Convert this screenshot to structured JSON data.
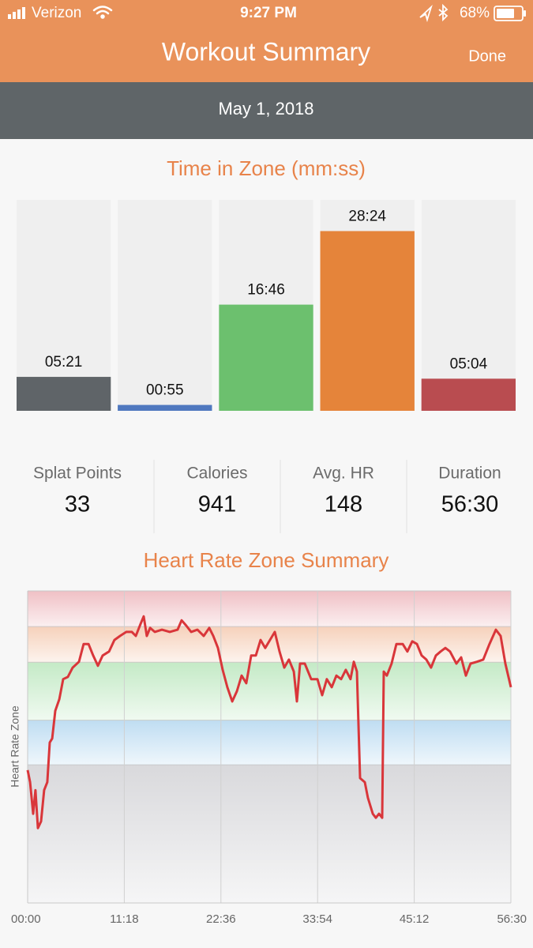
{
  "status_bar": {
    "carrier": "Verizon",
    "time": "9:27 PM",
    "battery": "68%"
  },
  "nav": {
    "title": "Workout Summary",
    "done": "Done"
  },
  "date": "May 1, 2018",
  "stats": [
    {
      "label": "Splat Points",
      "value": 33
    },
    {
      "label": "Calories",
      "value": 941
    },
    {
      "label": "Avg. HR",
      "value": 148
    },
    {
      "label": "Duration",
      "value": "56:30"
    }
  ],
  "chart_data": [
    {
      "type": "bar",
      "title": "Time in Zone (mm:ss)",
      "categories": [
        null,
        null,
        null,
        null,
        null
      ],
      "values": [
        321,
        55,
        1006,
        1704,
        304
      ],
      "value_labels": [
        "05:21",
        "00:55",
        "16:46",
        "28:24",
        "05:04"
      ],
      "colors": [
        "#5f6468",
        "#4f78bf",
        "#6cc06e",
        "#e5843a",
        "#b94c50"
      ],
      "ylim": [
        0,
        2000
      ]
    },
    {
      "type": "line",
      "title": "Heart Rate Zone Summary",
      "y_label": "Heart Rate Zone",
      "x": [
        0,
        17,
        39,
        55,
        72,
        94,
        116,
        138,
        155,
        172,
        194,
        222,
        249,
        282,
        316,
        360,
        393,
        427,
        460,
        493,
        526,
        571,
        609,
        648,
        692,
        731,
        759,
        792,
        814,
        836,
        859,
        892,
        942,
        997,
        1052,
        1080,
        1113,
        1147,
        1191,
        1235,
        1274,
        1302,
        1335,
        1368,
        1401,
        1435,
        1468,
        1501,
        1534,
        1568,
        1601,
        1634,
        1667,
        1700,
        1734,
        1767,
        1800,
        1833,
        1867,
        1889,
        1911,
        1944,
        1989,
        2033,
        2066,
        2099,
        2133,
        2166,
        2199,
        2232,
        2265,
        2288,
        2310,
        2332,
        2365,
        2387,
        2421,
        2443,
        2465,
        2487,
        2498,
        2520,
        2553,
        2587,
        2631,
        2664,
        2698,
        2731,
        2764,
        2797,
        2830,
        2864,
        2897,
        2930,
        2963,
        3008,
        3041,
        3074,
        3107,
        3152,
        3196,
        3240,
        3285,
        3318,
        3351,
        3390
      ],
      "series": [
        {
          "color": "#d9363a",
          "values": [
            59.8,
            57.1,
            50.0,
            55.3,
            46.8,
            48.3,
            55.3,
            57.1,
            66.0,
            66.9,
            73.1,
            75.7,
            80.2,
            80.7,
            82.8,
            84.1,
            88.1,
            88.1,
            85.5,
            83.2,
            85.5,
            86.4,
            89.0,
            89.9,
            90.8,
            90.8,
            89.9,
            92.6,
            94.3,
            89.9,
            91.7,
            90.8,
            91.3,
            90.8,
            91.3,
            93.4,
            92.2,
            90.8,
            91.3,
            89.9,
            91.7,
            89.9,
            87.2,
            82.3,
            78.4,
            75.2,
            77.5,
            81.0,
            79.3,
            85.5,
            85.5,
            89.0,
            87.2,
            89.0,
            90.8,
            86.4,
            82.8,
            84.6,
            81.9,
            75.2,
            83.7,
            83.7,
            80.2,
            80.2,
            76.6,
            80.2,
            78.4,
            81.0,
            80.2,
            82.3,
            80.2,
            84.1,
            81.9,
            58.0,
            57.1,
            53.6,
            50.0,
            49.1,
            50.0,
            49.1,
            81.9,
            81.0,
            83.7,
            88.1,
            88.1,
            86.4,
            88.7,
            88.1,
            85.5,
            84.6,
            82.8,
            85.5,
            86.4,
            87.2,
            86.4,
            83.7,
            85.1,
            81.0,
            83.7,
            84.1,
            84.6,
            88.1,
            91.3,
            89.9,
            83.7,
            78.4
          ]
        }
      ],
      "xlim": [
        0,
        3390
      ],
      "xticks": [
        {
          "value": 0,
          "label": "00:00"
        },
        {
          "value": 678,
          "label": "11:18"
        },
        {
          "value": 1356,
          "label": "22:36"
        },
        {
          "value": 2034,
          "label": "33:54"
        },
        {
          "value": 2712,
          "label": "45:12"
        },
        {
          "value": 3390,
          "label": "56:30"
        }
      ],
      "ylim": [
        30,
        100
      ],
      "zones": [
        {
          "from": 30,
          "to": 61,
          "color": "#d9d9dc"
        },
        {
          "from": 61,
          "to": 71,
          "color": "#bfddf2"
        },
        {
          "from": 71,
          "to": 84,
          "color": "#c4eac6"
        },
        {
          "from": 84,
          "to": 92,
          "color": "#f6d1bb"
        },
        {
          "from": 92,
          "to": 100,
          "color": "#f0c0c5"
        }
      ],
      "grid": true
    }
  ]
}
